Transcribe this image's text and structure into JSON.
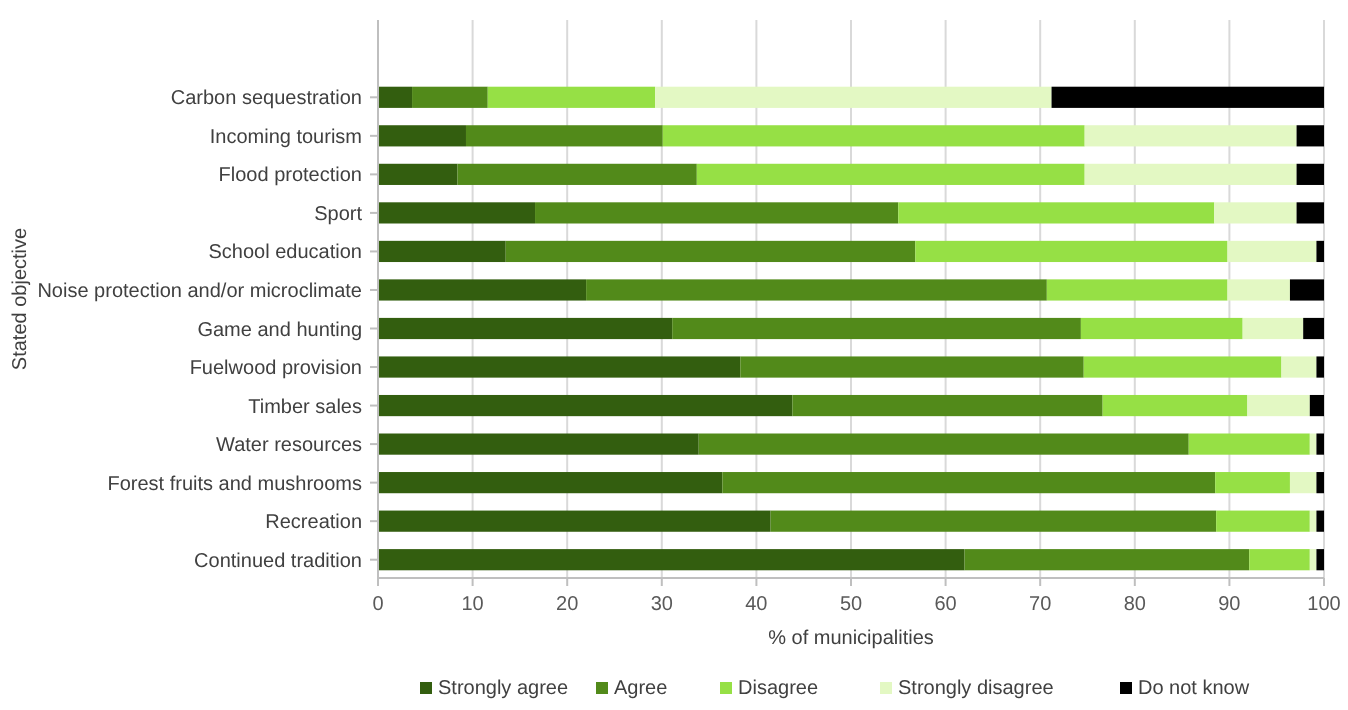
{
  "chart_data": {
    "type": "bar",
    "orientation": "horizontal",
    "stacked": true,
    "xlabel": "% of municipalities",
    "ylabel": "Stated objective",
    "categories": [
      "Carbon sequestration",
      "Incoming tourism",
      "Flood protection",
      "Sport",
      "School education",
      "Noise protection and/or microclimate",
      "Game and hunting",
      "Fuelwood provision",
      "Timber sales",
      "Water resources",
      "Forest fruits and mushrooms",
      "Recreation",
      "Continued tradition"
    ],
    "series": [
      {
        "name": "Strongly agree",
        "color": "#335e0f",
        "values": [
          3.6,
          9.3,
          8.4,
          16.6,
          13.5,
          22.0,
          31.1,
          38.3,
          43.8,
          33.9,
          36.4,
          41.5,
          62.0
        ]
      },
      {
        "name": "Agree",
        "color": "#528a1a",
        "values": [
          8.0,
          20.8,
          25.3,
          38.4,
          43.3,
          48.7,
          43.2,
          36.3,
          32.8,
          51.8,
          52.1,
          47.1,
          30.1
        ]
      },
      {
        "name": "Disagree",
        "color": "#96e045",
        "values": [
          17.7,
          44.6,
          41.0,
          33.4,
          33.0,
          19.1,
          17.1,
          20.9,
          15.3,
          12.8,
          7.9,
          9.9,
          6.4
        ]
      },
      {
        "name": "Strongly disagree",
        "color": "#e3f8c3",
        "values": [
          41.9,
          22.4,
          22.4,
          8.7,
          9.4,
          6.6,
          6.4,
          3.7,
          6.6,
          0.7,
          2.8,
          0.7,
          0.7
        ]
      },
      {
        "name": "Do not know",
        "color": "#000000",
        "values": [
          28.8,
          2.9,
          2.9,
          2.9,
          0.8,
          3.6,
          2.2,
          0.8,
          1.5,
          0.8,
          0.8,
          0.8,
          0.8
        ]
      }
    ],
    "xlim": [
      0,
      100
    ],
    "xticks": [
      0,
      10,
      20,
      30,
      40,
      50,
      60,
      70,
      80,
      90,
      100
    ],
    "grid": "x",
    "legend": "bottom"
  }
}
